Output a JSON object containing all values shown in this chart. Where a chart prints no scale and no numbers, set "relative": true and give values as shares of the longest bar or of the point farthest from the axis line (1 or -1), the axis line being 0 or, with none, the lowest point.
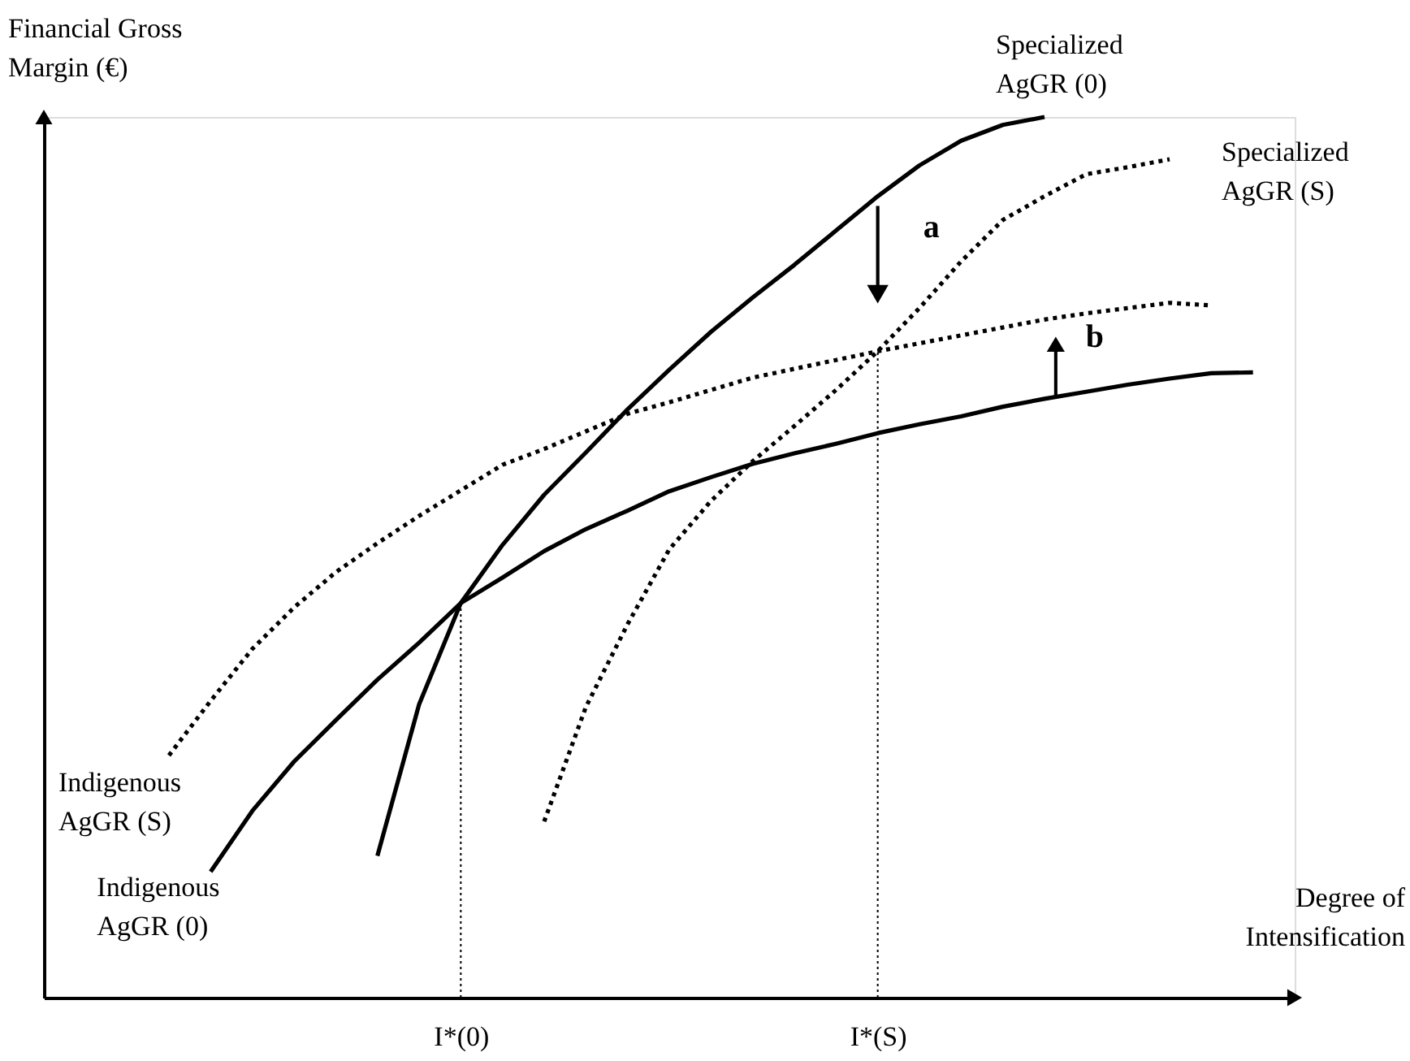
{
  "chart_data": {
    "type": "line",
    "relative": true,
    "xlabel": "Degree of Intensification",
    "ylabel": "Financial Gross Margin (€)",
    "categories": [
      null,
      null,
      null,
      null,
      null,
      null,
      null,
      null,
      null,
      null,
      "I*(0)",
      null,
      null,
      null,
      null,
      null,
      null,
      null,
      null,
      null,
      "I*(S)",
      null,
      null,
      null,
      null,
      null,
      null,
      null,
      null,
      null,
      null
    ],
    "series": [
      {
        "name": "Specialized AgGR (0)",
        "color": "#000000",
        "line_style": "solid",
        "values": [
          null,
          null,
          null,
          null,
          null,
          null,
          null,
          null,
          0.161,
          0.333,
          0.448,
          0.514,
          0.571,
          0.619,
          0.668,
          0.713,
          0.756,
          0.795,
          0.832,
          0.871,
          0.91,
          0.945,
          0.973,
          0.991,
          1.0,
          null,
          null,
          null,
          null,
          null,
          null
        ]
      },
      {
        "name": "Specialized AgGR (S)",
        "color": "#000000",
        "line_style": "dotted",
        "values": [
          null,
          null,
          null,
          null,
          null,
          null,
          null,
          null,
          null,
          null,
          null,
          null,
          0.2,
          0.33,
          0.424,
          0.509,
          0.564,
          0.609,
          0.649,
          0.69,
          0.734,
          0.783,
          0.836,
          0.883,
          0.91,
          0.935,
          0.943,
          0.952,
          null,
          null,
          null
        ]
      },
      {
        "name": "Indigenous AgGR (S)",
        "color": "#000000",
        "line_style": "dotted",
        "values": [
          null,
          null,
          null,
          0.275,
          0.337,
          0.396,
          0.443,
          0.483,
          0.516,
          0.547,
          0.576,
          0.605,
          0.623,
          0.643,
          0.663,
          0.676,
          0.69,
          0.704,
          0.714,
          0.724,
          0.734,
          0.743,
          0.752,
          0.761,
          0.77,
          0.777,
          0.783,
          0.789,
          0.786,
          null,
          null
        ]
      },
      {
        "name": "Indigenous AgGR (0)",
        "color": "#000000",
        "line_style": "solid",
        "values": [
          null,
          null,
          null,
          null,
          0.143,
          0.212,
          0.268,
          0.315,
          0.361,
          0.403,
          0.448,
          0.477,
          0.507,
          0.532,
          0.553,
          0.575,
          0.591,
          0.606,
          0.618,
          0.629,
          0.641,
          0.651,
          0.66,
          0.671,
          0.68,
          0.688,
          0.696,
          0.703,
          0.709,
          0.71,
          null
        ]
      }
    ],
    "ref_lines": [
      {
        "axis": "x",
        "value": "I*(0)",
        "line_style": "dotted",
        "color": "#000000"
      },
      {
        "axis": "x",
        "value": "I*(S)",
        "line_style": "dotted",
        "color": "#000000"
      }
    ],
    "annotations": [
      "a",
      "b"
    ]
  }
}
